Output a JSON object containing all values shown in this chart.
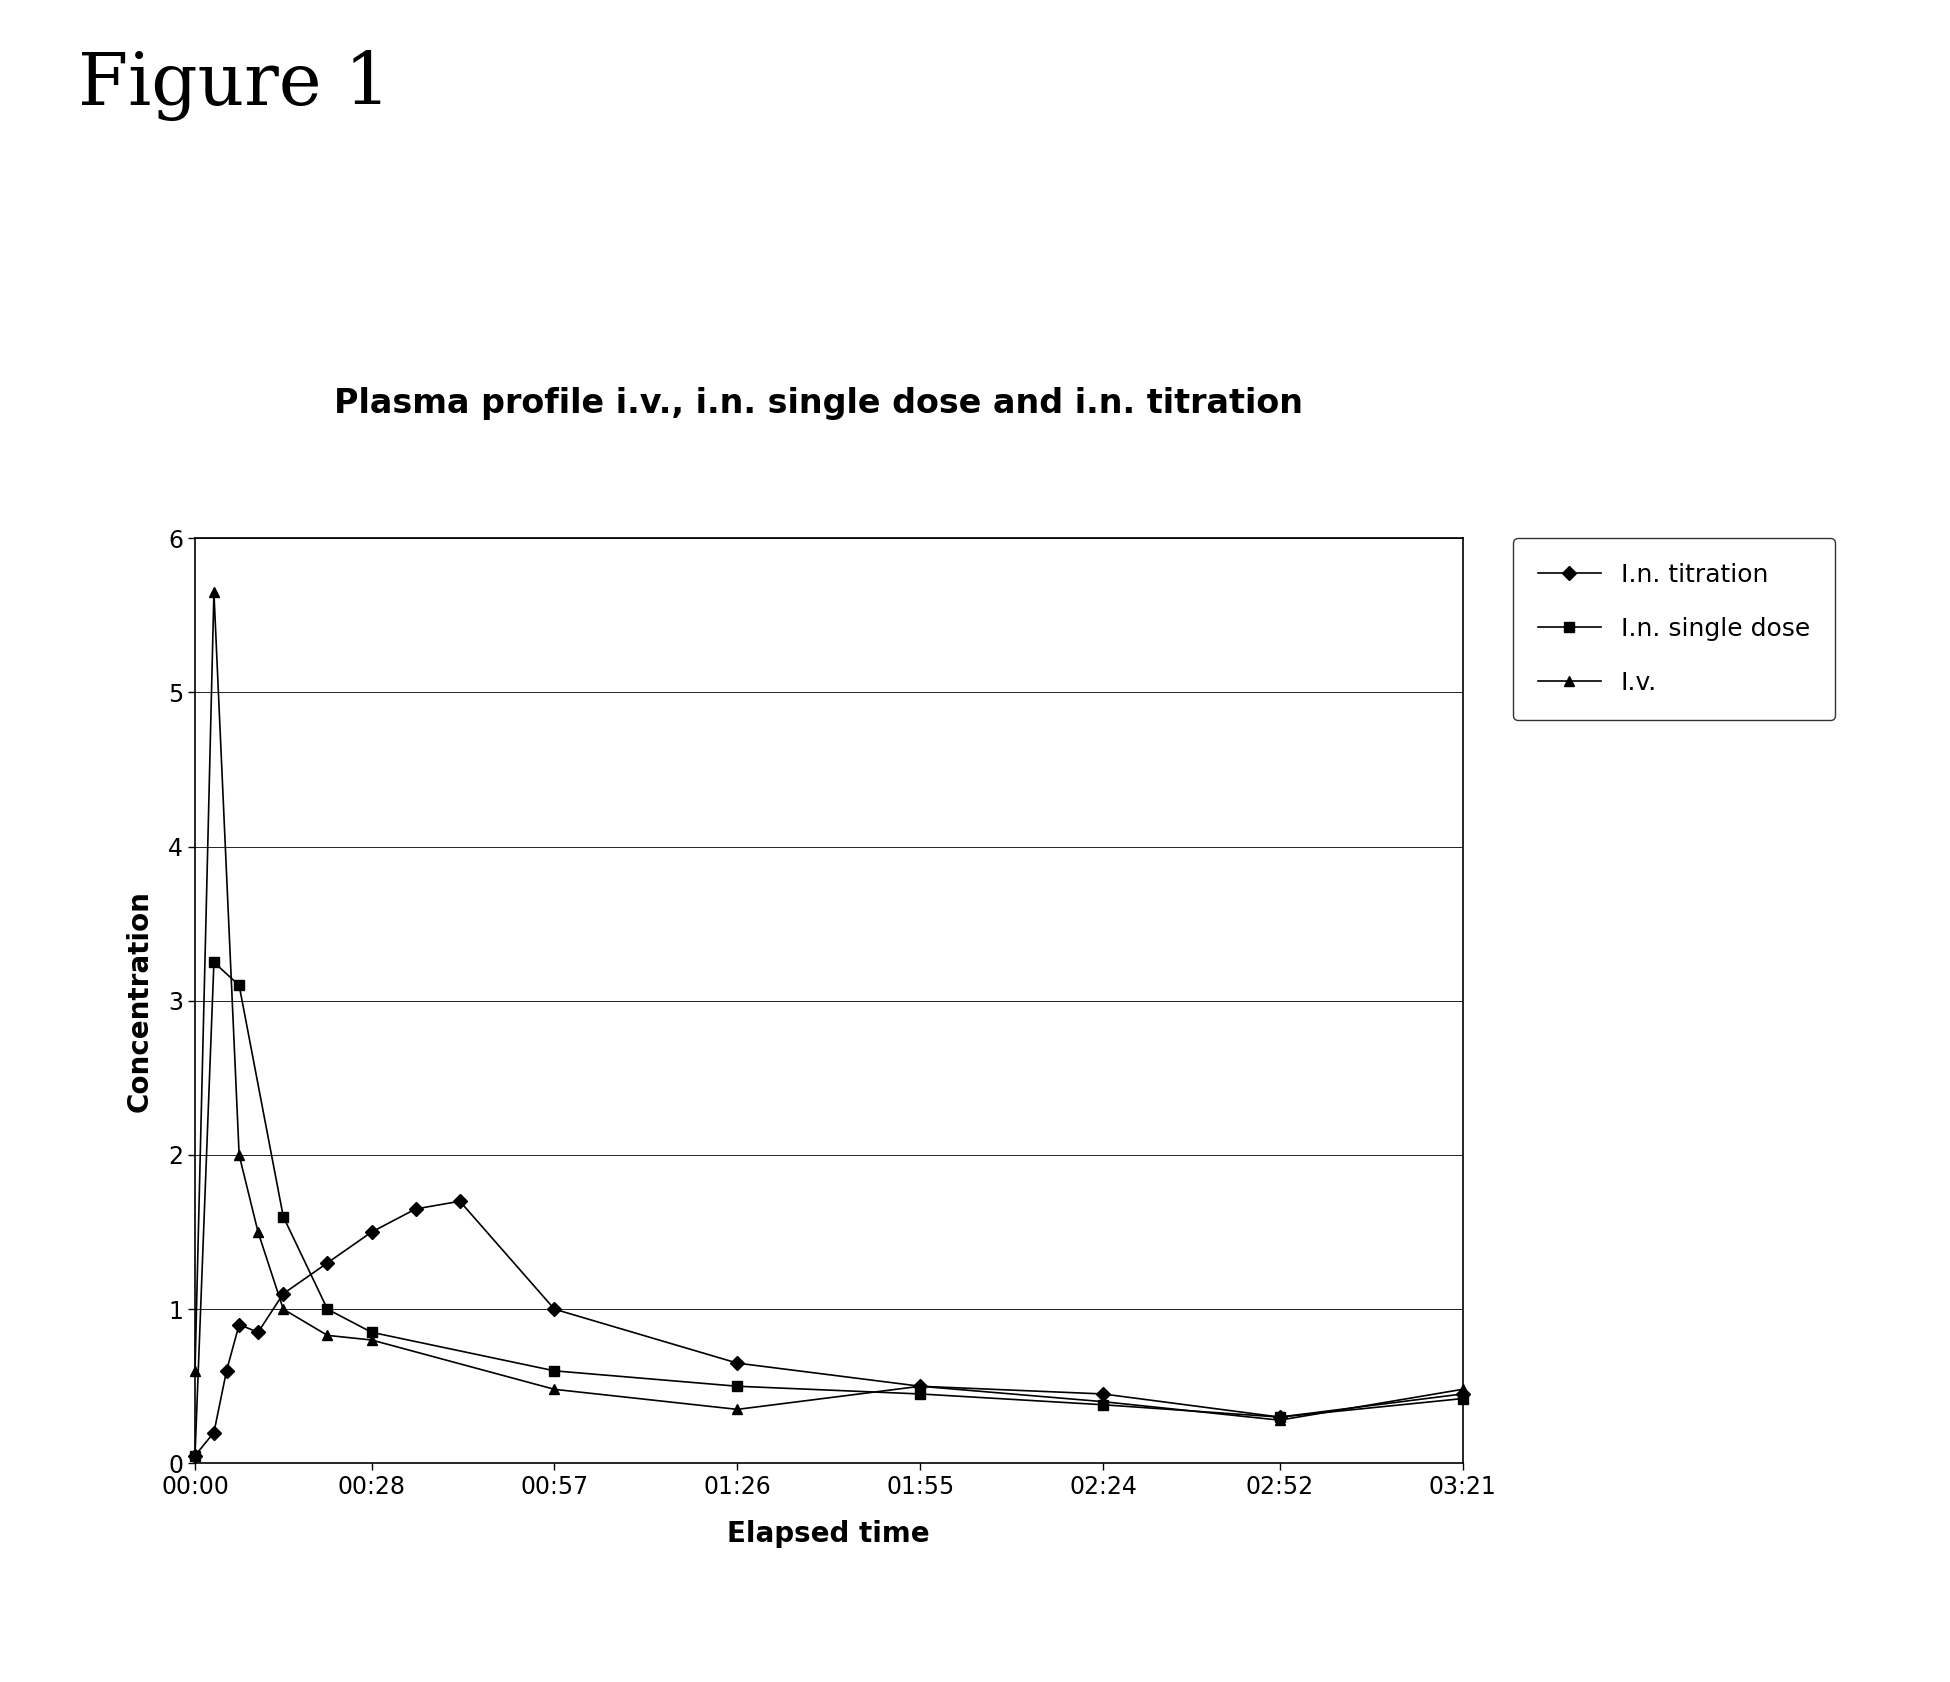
{
  "title_main": "Figure 1",
  "title_chart": "Plasma profile i.v., i.n. single dose and i.n. titration",
  "xlabel": "Elapsed time",
  "ylabel": "Concentration",
  "ylim": [
    0,
    6
  ],
  "yticks": [
    0,
    1,
    2,
    3,
    4,
    5,
    6
  ],
  "xtick_labels": [
    "00:00",
    "00:28",
    "00:57",
    "01:26",
    "01:55",
    "02:24",
    "02:52",
    "03:21"
  ],
  "xtick_minutes": [
    0,
    28,
    57,
    86,
    115,
    144,
    172,
    201
  ],
  "series": [
    {
      "label": "I.n. titration",
      "marker": "D",
      "color": "#000000",
      "linewidth": 1.2,
      "markersize": 7,
      "x_minutes": [
        0,
        3,
        5,
        7,
        10,
        14,
        21,
        28,
        35,
        42,
        57,
        86,
        115,
        144,
        172,
        201
      ],
      "y": [
        0.05,
        0.2,
        0.6,
        0.9,
        0.85,
        1.1,
        1.3,
        1.5,
        1.65,
        1.7,
        1.0,
        0.65,
        0.5,
        0.45,
        0.3,
        0.45
      ]
    },
    {
      "label": "I.n. single dose",
      "marker": "s",
      "color": "#000000",
      "linewidth": 1.2,
      "markersize": 7,
      "x_minutes": [
        0,
        3,
        7,
        14,
        21,
        28,
        57,
        86,
        115,
        144,
        172,
        201
      ],
      "y": [
        0.05,
        3.25,
        3.1,
        1.6,
        1.0,
        0.85,
        0.6,
        0.5,
        0.45,
        0.38,
        0.3,
        0.42
      ]
    },
    {
      "label": "I.v.",
      "marker": "^",
      "color": "#000000",
      "linewidth": 1.2,
      "markersize": 7,
      "x_minutes": [
        0,
        3,
        7,
        10,
        14,
        21,
        28,
        57,
        86,
        115,
        144,
        172,
        201
      ],
      "y": [
        0.6,
        5.65,
        2.0,
        1.5,
        1.0,
        0.83,
        0.8,
        0.48,
        0.35,
        0.5,
        0.4,
        0.28,
        0.48
      ]
    }
  ],
  "background_color": "#ffffff",
  "title_main_fontsize": 52,
  "title_chart_fontsize": 24,
  "axis_label_fontsize": 20,
  "tick_fontsize": 17,
  "legend_fontsize": 18
}
